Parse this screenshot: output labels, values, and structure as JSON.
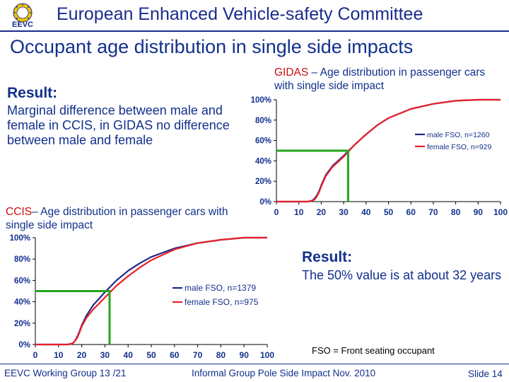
{
  "header": {
    "logo_text": "EEVC",
    "title": "European Enhanced Vehicle-safety Committee"
  },
  "slide_title": "Occupant age distribution in single side impacts",
  "result1": {
    "heading": "Result:",
    "body": "Marginal difference between male and female in CCIS, in GIDAS no difference between male and female"
  },
  "result2": {
    "heading": "Result:",
    "body": "The 50% value is at about 32 years"
  },
  "fso_note": "FSO = Front seating occupant",
  "footer": {
    "left": "EEVC Working Group 13 /21",
    "center": "Informal Group Pole Side Impact Nov. 2010",
    "right": "Slide 14"
  },
  "colors": {
    "accent": "#12308c",
    "male_line": "#1e2a8a",
    "female_line": "#e8202a",
    "marker": "#22a51c"
  },
  "chart_data": [
    {
      "id": "gidas",
      "type": "line",
      "title_prefix": "GIDAS",
      "title_rest": " – Age distribution in passenger cars with single side impact",
      "xlabel": "",
      "ylabel": "",
      "xlim": [
        0,
        100
      ],
      "ylim": [
        0,
        100
      ],
      "x_ticks": [
        "0",
        "10",
        "20",
        "30",
        "40",
        "50",
        "60",
        "70",
        "80",
        "90",
        "100"
      ],
      "y_ticks": [
        "0%",
        "20%",
        "40%",
        "60%",
        "80%",
        "100%"
      ],
      "legend_position": "right",
      "series": [
        {
          "name": "male FSO, n=1260",
          "color": "#1e2a8a",
          "x": [
            0,
            14,
            16,
            17,
            18,
            19,
            20,
            22,
            25,
            30,
            35,
            40,
            45,
            50,
            60,
            70,
            80,
            90,
            100
          ],
          "y": [
            0,
            0,
            1,
            3,
            6,
            10,
            16,
            26,
            35,
            45,
            56,
            66,
            75,
            82,
            91,
            96,
            99,
            100,
            100
          ]
        },
        {
          "name": "female FSO, n=929",
          "color": "#e8202a",
          "x": [
            0,
            14,
            16,
            17,
            18,
            19,
            20,
            22,
            25,
            30,
            35,
            40,
            45,
            50,
            60,
            70,
            80,
            90,
            100
          ],
          "y": [
            0,
            0,
            1,
            2,
            5,
            9,
            15,
            25,
            34,
            44,
            56,
            66,
            75,
            82,
            91,
            96,
            99,
            100,
            100
          ]
        }
      ],
      "marker_x": 32,
      "marker_y": 50
    },
    {
      "id": "ccis",
      "type": "line",
      "title_prefix": "CCIS",
      "title_rest": "– Age distribution in passenger cars with single side impact",
      "xlabel": "",
      "ylabel": "",
      "xlim": [
        0,
        100
      ],
      "ylim": [
        0,
        100
      ],
      "x_ticks": [
        "0",
        "10",
        "20",
        "30",
        "40",
        "50",
        "60",
        "70",
        "80",
        "90",
        "100"
      ],
      "y_ticks": [
        "0%",
        "20%",
        "40%",
        "60%",
        "80%",
        "100%"
      ],
      "legend_position": "right",
      "series": [
        {
          "name": "male FSO, n=1379",
          "color": "#1e2a8a",
          "x": [
            0,
            14,
            16,
            17,
            18,
            19,
            20,
            22,
            25,
            30,
            35,
            40,
            45,
            50,
            60,
            70,
            80,
            90,
            100
          ],
          "y": [
            0,
            0,
            1,
            3,
            7,
            12,
            18,
            27,
            37,
            49,
            60,
            69,
            76,
            82,
            90,
            95,
            98,
            100,
            100
          ]
        },
        {
          "name": "female FSO, n=975",
          "color": "#e8202a",
          "x": [
            0,
            14,
            16,
            17,
            18,
            19,
            20,
            22,
            25,
            30,
            35,
            40,
            45,
            50,
            60,
            70,
            80,
            90,
            100
          ],
          "y": [
            0,
            0,
            1,
            3,
            6,
            11,
            17,
            25,
            33,
            44,
            55,
            64,
            72,
            79,
            89,
            95,
            98,
            100,
            100
          ]
        }
      ],
      "marker_x": 32,
      "marker_y": 50
    }
  ]
}
